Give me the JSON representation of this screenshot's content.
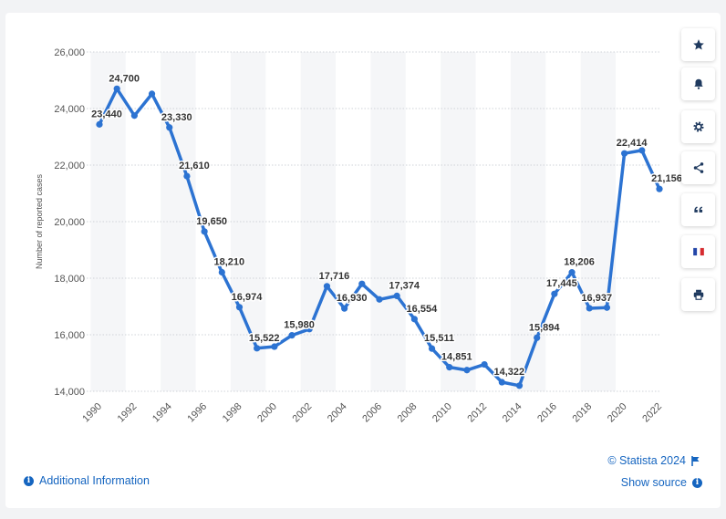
{
  "chart_data": {
    "type": "line",
    "title": "",
    "xlabel": "",
    "ylabel": "Number of reported cases",
    "ylim": [
      14000,
      26000
    ],
    "y_ticks": [
      14000,
      16000,
      18000,
      20000,
      22000,
      24000,
      26000
    ],
    "y_tick_labels": [
      "14,000",
      "16,000",
      "18,000",
      "20,000",
      "22,000",
      "24,000",
      "26,000"
    ],
    "x_tick_labels": [
      "1990",
      "1992",
      "1994",
      "1996",
      "1998",
      "2000",
      "2002",
      "2004",
      "2006",
      "2008",
      "2010",
      "2012",
      "2014",
      "2016",
      "2018",
      "2020",
      "2022"
    ],
    "grid": true,
    "series": [
      {
        "x": [
          1990,
          1991,
          1992,
          1993,
          1994,
          1995,
          1996,
          1997,
          1998,
          1999,
          2000,
          2001,
          2002,
          2003,
          2004,
          2005,
          2006,
          2007,
          2008,
          2009,
          2010,
          2011,
          2012,
          2013,
          2014,
          2015,
          2016,
          2017,
          2018,
          2019,
          2020,
          2021,
          2022
        ],
        "values": [
          23440,
          24700,
          23750,
          24520,
          23330,
          21610,
          19650,
          18210,
          16974,
          15522,
          15580,
          15980,
          16200,
          17716,
          16930,
          17800,
          17250,
          17374,
          16554,
          15511,
          14851,
          14750,
          14950,
          14322,
          14200,
          15894,
          17445,
          18206,
          16937,
          16960,
          22414,
          22520,
          21156
        ],
        "labels": [
          "23,440",
          "24,700",
          "",
          "",
          "23,330",
          "21,610",
          "19,650",
          "18,210",
          "16,974",
          "15,522",
          "",
          "15,980",
          "",
          "17,716",
          "16,930",
          "",
          "",
          "17,374",
          "16,554",
          "15,511",
          "14,851",
          "",
          "",
          "14,322",
          "",
          "15,894",
          "17,445",
          "18,206",
          "16,937",
          "",
          "22,414",
          "",
          "21,156"
        ]
      }
    ],
    "colors": {
      "line": "#2c73d2",
      "band": "#f5f6f8",
      "grid": "#cfd3d8"
    }
  },
  "sidebar": {
    "buttons": [
      {
        "icon": "star-icon",
        "name": "favorite-button"
      },
      {
        "icon": "bell-icon",
        "name": "notification-button"
      },
      {
        "icon": "gear-icon",
        "name": "settings-button"
      },
      {
        "icon": "share-icon",
        "name": "share-button"
      },
      {
        "icon": "quote-icon",
        "name": "cite-button"
      },
      {
        "icon": "french-flag-icon",
        "name": "language-button"
      },
      {
        "icon": "printer-icon",
        "name": "print-button"
      }
    ]
  },
  "footer": {
    "additional_info": "Additional Information",
    "credit": "© Statista 2024",
    "show_source": "Show source"
  }
}
